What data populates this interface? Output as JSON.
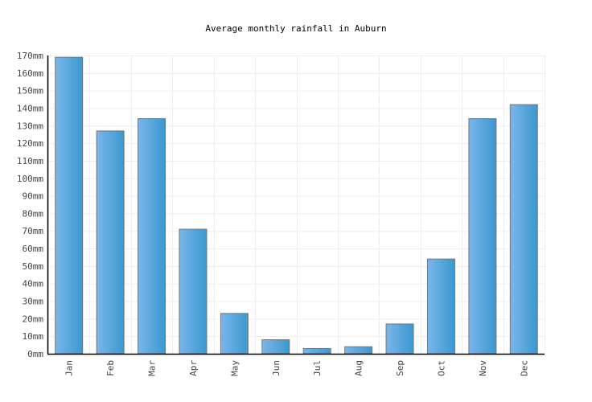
{
  "chart_data": {
    "type": "bar",
    "title": "Average monthly rainfall in Auburn",
    "xlabel": "",
    "ylabel": "",
    "categories": [
      "Jan",
      "Feb",
      "Mar",
      "Apr",
      "May",
      "Jun",
      "Jul",
      "Aug",
      "Sep",
      "Oct",
      "Nov",
      "Dec"
    ],
    "values": [
      169,
      127,
      134,
      71,
      23,
      8,
      3,
      4,
      17,
      54,
      134,
      142
    ],
    "unit": "mm",
    "ylim": [
      0,
      170
    ],
    "yticks": [
      0,
      10,
      20,
      30,
      40,
      50,
      60,
      70,
      80,
      90,
      100,
      110,
      120,
      130,
      140,
      150,
      160,
      170
    ],
    "ytick_labels": [
      "0mm",
      "10mm",
      "20mm",
      "30mm",
      "40mm",
      "50mm",
      "60mm",
      "70mm",
      "80mm",
      "90mm",
      "100mm",
      "110mm",
      "120mm",
      "130mm",
      "140mm",
      "150mm",
      "160mm",
      "170mm"
    ],
    "grid": true,
    "legend": null,
    "colors": {
      "bar_left": "#7ab6ea",
      "bar_right": "#3a98cf",
      "bar_border": "#777777",
      "grid": "#eeeeee",
      "axis": "#000000"
    }
  }
}
